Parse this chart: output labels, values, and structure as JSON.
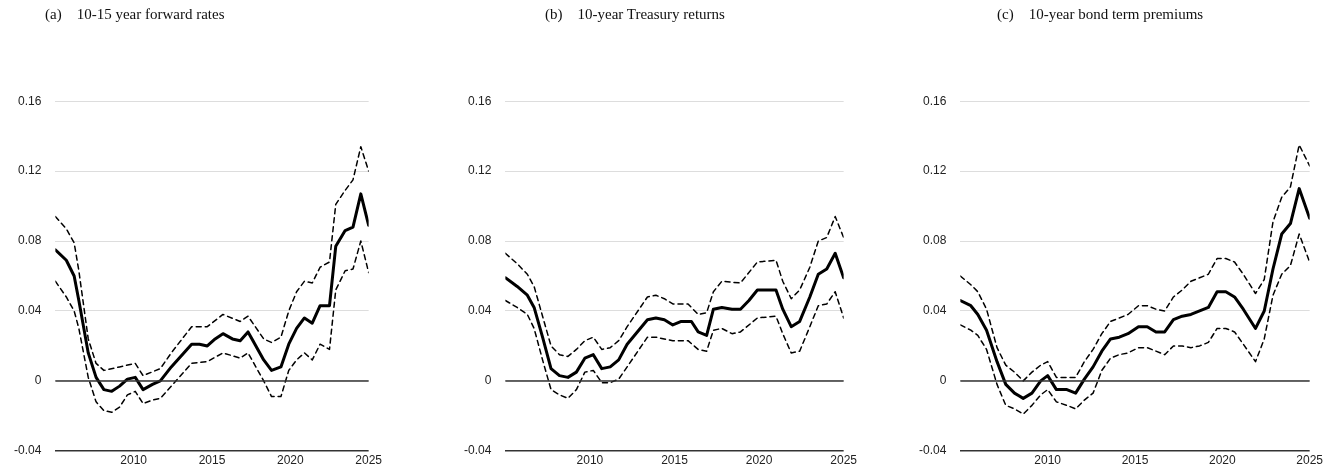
{
  "chart_data": [
    {
      "type": "line",
      "title": "(a)    10-15 year forward rates",
      "xlim": [
        2005,
        2025
      ],
      "xticks": [
        2010,
        2015,
        2020,
        2025
      ],
      "ylim": [
        -0.04,
        0.16
      ],
      "yticks": [
        -0.04,
        0,
        0.04,
        0.08,
        0.12,
        0.16
      ],
      "grid": "y",
      "legend": false,
      "marker": "none",
      "ref_lines": [
        {
          "axis": "y",
          "value": 0,
          "color": "#333333"
        }
      ],
      "series": [
        {
          "color": "#000000",
          "line_style": "solid",
          "x": [
            2005.0,
            2005.7,
            2006.2,
            2006.5,
            2007.1,
            2007.6,
            2008.1,
            2008.6,
            2009.1,
            2009.6,
            2010.1,
            2010.6,
            2011.2,
            2011.7,
            2012.4,
            2013.7,
            2014.2,
            2014.7,
            2015.2,
            2015.7,
            2016.3,
            2016.8,
            2017.3,
            2018.3,
            2018.8,
            2019.4,
            2019.9,
            2020.4,
            2020.9,
            2021.4,
            2021.9,
            2022.5,
            2022.9,
            2023.5,
            2024.0,
            2024.5,
            2025.0
          ],
          "values": [
            0.075,
            0.069,
            0.06,
            0.046,
            0.016,
            0.002,
            -0.005,
            -0.006,
            -0.003,
            0.001,
            0.002,
            -0.005,
            -0.002,
            0,
            0.008,
            0.021,
            0.021,
            0.02,
            0.024,
            0.027,
            0.024,
            0.023,
            0.028,
            0.012,
            0.006,
            0.008,
            0.021,
            0.03,
            0.036,
            0.033,
            0.043,
            0.043,
            0.077,
            0.086,
            0.088,
            0.107,
            0.089
          ]
        },
        {
          "color": "#000000",
          "line_style": "dashed",
          "x": [
            2005.0,
            2005.7,
            2006.2,
            2006.5,
            2007.1,
            2007.6,
            2008.1,
            2009.1,
            2010.1,
            2010.6,
            2011.7,
            2012.4,
            2013.7,
            2014.7,
            2015.7,
            2016.8,
            2017.3,
            2018.3,
            2018.8,
            2019.4,
            2019.9,
            2020.4,
            2020.9,
            2021.4,
            2021.9,
            2022.5,
            2022.9,
            2023.5,
            2024.0,
            2024.5,
            2025.0
          ],
          "values": [
            0.094,
            0.087,
            0.079,
            0.063,
            0.024,
            0.01,
            0.006,
            0.008,
            0.01,
            0.003,
            0.007,
            0.016,
            0.031,
            0.031,
            0.038,
            0.034,
            0.037,
            0.024,
            0.022,
            0.025,
            0.04,
            0.051,
            0.057,
            0.056,
            0.065,
            0.068,
            0.101,
            0.109,
            0.115,
            0.134,
            0.12
          ]
        },
        {
          "color": "#000000",
          "line_style": "dashed",
          "x": [
            2005.0,
            2005.7,
            2006.2,
            2006.5,
            2007.1,
            2007.6,
            2008.1,
            2008.6,
            2009.1,
            2009.6,
            2010.1,
            2010.6,
            2011.2,
            2011.7,
            2012.4,
            2013.7,
            2014.7,
            2015.7,
            2016.8,
            2017.3,
            2018.3,
            2018.8,
            2019.4,
            2019.9,
            2020.4,
            2020.9,
            2021.4,
            2021.9,
            2022.5,
            2022.9,
            2023.5,
            2024.0,
            2024.5,
            2025.0
          ],
          "values": [
            0.057,
            0.048,
            0.04,
            0.03,
            0.002,
            -0.012,
            -0.017,
            -0.018,
            -0.015,
            -0.008,
            -0.006,
            -0.013,
            -0.011,
            -0.01,
            -0.003,
            0.01,
            0.011,
            0.016,
            0.013,
            0.016,
            0,
            -0.009,
            -0.009,
            0.006,
            0.012,
            0.016,
            0.012,
            0.021,
            0.018,
            0.052,
            0.063,
            0.064,
            0.08,
            0.062
          ]
        }
      ]
    },
    {
      "type": "line",
      "title": "(b)    10-year Treasury returns",
      "xlim": [
        2005,
        2025
      ],
      "xticks": [
        2010,
        2015,
        2020,
        2025
      ],
      "ylim": [
        -0.04,
        0.16
      ],
      "yticks": [
        -0.04,
        0,
        0.04,
        0.08,
        0.12,
        0.16
      ],
      "grid": "y",
      "legend": false,
      "marker": "none",
      "ref_lines": [
        {
          "axis": "y",
          "value": 0,
          "color": "#333333"
        }
      ],
      "series": [
        {
          "color": "#000000",
          "line_style": "solid",
          "x": [
            2005.0,
            2005.7,
            2006.3,
            2006.7,
            2007.2,
            2007.7,
            2008.2,
            2008.7,
            2009.2,
            2009.7,
            2010.2,
            2010.7,
            2011.2,
            2011.7,
            2012.2,
            2013.4,
            2013.9,
            2014.4,
            2014.9,
            2015.4,
            2016.0,
            2016.4,
            2016.9,
            2017.3,
            2017.8,
            2018.4,
            2018.9,
            2019.4,
            2019.9,
            2021.0,
            2021.4,
            2021.9,
            2022.4,
            2023.0,
            2023.5,
            2024.0,
            2024.5,
            2025.0
          ],
          "values": [
            0.059,
            0.054,
            0.049,
            0.042,
            0.025,
            0.007,
            0.003,
            0.002,
            0.005,
            0.013,
            0.015,
            0.007,
            0.008,
            0.012,
            0.021,
            0.035,
            0.036,
            0.035,
            0.032,
            0.034,
            0.034,
            0.028,
            0.026,
            0.041,
            0.042,
            0.041,
            0.041,
            0.046,
            0.052,
            0.052,
            0.041,
            0.031,
            0.034,
            0.048,
            0.061,
            0.064,
            0.073,
            0.059
          ]
        },
        {
          "color": "#000000",
          "line_style": "dashed",
          "x": [
            2005.0,
            2005.7,
            2006.3,
            2006.7,
            2007.2,
            2007.7,
            2008.2,
            2008.7,
            2009.2,
            2009.7,
            2010.2,
            2010.7,
            2011.2,
            2011.7,
            2012.2,
            2013.4,
            2013.9,
            2014.4,
            2014.9,
            2015.8,
            2016.4,
            2016.9,
            2017.3,
            2017.8,
            2018.9,
            2019.9,
            2021.0,
            2021.4,
            2021.9,
            2022.4,
            2023.0,
            2023.5,
            2024.0,
            2024.5,
            2025.0
          ],
          "values": [
            0.073,
            0.067,
            0.061,
            0.054,
            0.037,
            0.02,
            0.015,
            0.014,
            0.018,
            0.023,
            0.025,
            0.018,
            0.019,
            0.023,
            0.031,
            0.048,
            0.049,
            0.047,
            0.044,
            0.044,
            0.038,
            0.039,
            0.051,
            0.057,
            0.056,
            0.068,
            0.069,
            0.057,
            0.047,
            0.052,
            0.065,
            0.08,
            0.082,
            0.094,
            0.082
          ]
        },
        {
          "color": "#000000",
          "line_style": "dashed",
          "x": [
            2005.0,
            2005.7,
            2006.3,
            2006.7,
            2007.2,
            2007.7,
            2008.2,
            2008.7,
            2009.2,
            2009.7,
            2010.2,
            2010.7,
            2011.2,
            2011.7,
            2012.2,
            2013.4,
            2013.9,
            2014.9,
            2015.8,
            2016.4,
            2016.9,
            2017.3,
            2017.8,
            2018.4,
            2018.9,
            2019.9,
            2021.0,
            2021.4,
            2021.9,
            2022.4,
            2023.0,
            2023.5,
            2024.0,
            2024.5,
            2025.0
          ],
          "values": [
            0.046,
            0.042,
            0.038,
            0.03,
            0.012,
            -0.005,
            -0.008,
            -0.01,
            -0.005,
            0.005,
            0.006,
            -0.001,
            -0.001,
            0.001,
            0.008,
            0.025,
            0.025,
            0.023,
            0.023,
            0.018,
            0.017,
            0.029,
            0.03,
            0.027,
            0.028,
            0.036,
            0.037,
            0.027,
            0.016,
            0.017,
            0.031,
            0.043,
            0.044,
            0.051,
            0.036
          ]
        }
      ]
    },
    {
      "type": "line",
      "title": "(c)    10-year bond term premiums",
      "xlim": [
        2005,
        2025
      ],
      "xticks": [
        2010,
        2015,
        2020,
        2025
      ],
      "ylim": [
        -0.04,
        0.16
      ],
      "yticks": [
        -0.04,
        0,
        0.04,
        0.08,
        0.12,
        0.16
      ],
      "grid": "y",
      "legend": false,
      "marker": "none",
      "ref_lines": [
        {
          "axis": "y",
          "value": 0,
          "color": "#333333"
        }
      ],
      "series": [
        {
          "color": "#000000",
          "line_style": "solid",
          "x": [
            2005.0,
            2005.6,
            2006.0,
            2006.5,
            2007.1,
            2007.6,
            2008.1,
            2008.6,
            2009.1,
            2009.6,
            2010.0,
            2010.5,
            2011.1,
            2011.6,
            2012.1,
            2012.6,
            2013.1,
            2013.6,
            2014.1,
            2014.6,
            2015.2,
            2015.7,
            2016.2,
            2016.7,
            2017.2,
            2017.7,
            2018.2,
            2019.2,
            2019.7,
            2020.2,
            2020.7,
            2021.2,
            2021.9,
            2022.4,
            2022.9,
            2023.4,
            2023.9,
            2024.4,
            2025.0
          ],
          "values": [
            0.046,
            0.043,
            0.038,
            0.029,
            0.011,
            -0.002,
            -0.007,
            -0.01,
            -0.007,
            0,
            0.003,
            -0.005,
            -0.005,
            -0.007,
            0.001,
            0.008,
            0.017,
            0.024,
            0.025,
            0.027,
            0.031,
            0.031,
            0.028,
            0.028,
            0.035,
            0.037,
            0.038,
            0.042,
            0.051,
            0.051,
            0.048,
            0.041,
            0.03,
            0.04,
            0.064,
            0.084,
            0.09,
            0.11,
            0.093
          ]
        },
        {
          "color": "#000000",
          "line_style": "dashed",
          "x": [
            2005.0,
            2005.6,
            2006.0,
            2006.5,
            2007.1,
            2007.6,
            2008.1,
            2008.6,
            2009.1,
            2009.6,
            2010.0,
            2010.5,
            2011.6,
            2012.1,
            2012.6,
            2013.1,
            2013.6,
            2014.1,
            2014.6,
            2015.2,
            2015.7,
            2016.2,
            2016.7,
            2017.2,
            2017.7,
            2018.2,
            2018.7,
            2019.2,
            2019.7,
            2020.2,
            2020.7,
            2021.2,
            2021.9,
            2022.4,
            2022.9,
            2023.4,
            2023.9,
            2024.4,
            2025.0
          ],
          "values": [
            0.06,
            0.055,
            0.051,
            0.041,
            0.019,
            0.009,
            0.005,
            0,
            0.005,
            0.009,
            0.011,
            0.002,
            0.002,
            0.011,
            0.018,
            0.027,
            0.034,
            0.036,
            0.038,
            0.043,
            0.043,
            0.041,
            0.04,
            0.048,
            0.052,
            0.057,
            0.059,
            0.061,
            0.07,
            0.07,
            0.068,
            0.061,
            0.05,
            0.058,
            0.091,
            0.105,
            0.111,
            0.135,
            0.123
          ]
        },
        {
          "color": "#000000",
          "line_style": "dashed",
          "x": [
            2005.0,
            2005.6,
            2006.0,
            2006.5,
            2007.1,
            2007.6,
            2008.1,
            2008.6,
            2009.1,
            2009.6,
            2010.0,
            2010.5,
            2011.1,
            2011.6,
            2012.1,
            2012.6,
            2013.1,
            2013.6,
            2014.1,
            2014.6,
            2015.2,
            2015.7,
            2016.2,
            2016.7,
            2017.2,
            2017.7,
            2018.2,
            2018.7,
            2019.2,
            2019.7,
            2020.2,
            2020.7,
            2021.2,
            2021.9,
            2022.4,
            2022.9,
            2023.4,
            2023.9,
            2024.4,
            2025.0
          ],
          "values": [
            0.032,
            0.029,
            0.026,
            0.018,
            -0.002,
            -0.014,
            -0.016,
            -0.019,
            -0.014,
            -0.008,
            -0.005,
            -0.012,
            -0.014,
            -0.016,
            -0.011,
            -0.007,
            0.006,
            0.013,
            0.015,
            0.016,
            0.019,
            0.019,
            0.017,
            0.015,
            0.02,
            0.02,
            0.019,
            0.02,
            0.022,
            0.03,
            0.03,
            0.028,
            0.021,
            0.011,
            0.024,
            0.049,
            0.061,
            0.066,
            0.084,
            0.068
          ]
        }
      ]
    }
  ]
}
